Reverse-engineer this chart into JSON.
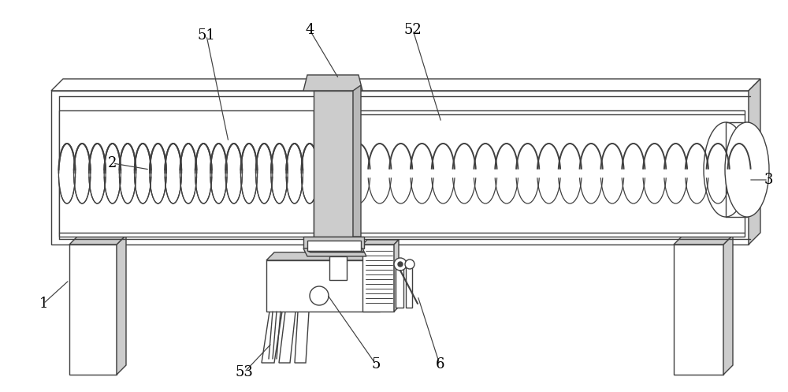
{
  "bg_color": "#ffffff",
  "line_color": "#404040",
  "light_gray": "#cccccc",
  "lw": 1.0,
  "label_fontsize": 13
}
